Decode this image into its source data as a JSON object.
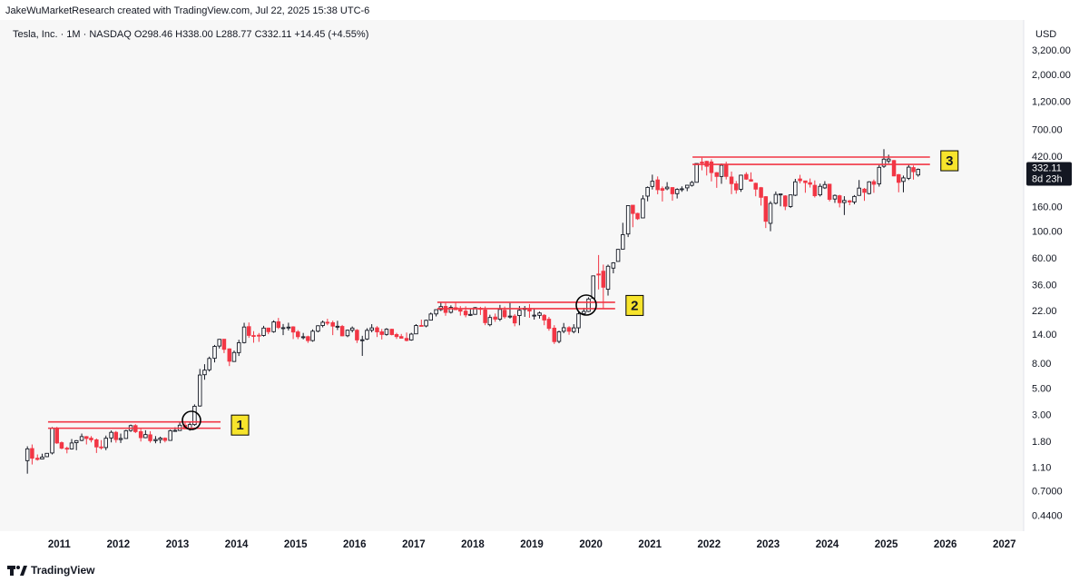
{
  "header": {
    "credit": "JakeWuMarketResearch created with TradingView.com, Jul 22, 2025 15:38 UTC-6"
  },
  "footer": {
    "brand": "TradingView"
  },
  "chart_data": {
    "type": "candlestick",
    "legend": "Tesla, Inc. · 1M · NASDAQ  O298.46 H338.00 L288.77 C332.11 +14.45 (+4.55%)",
    "currency": "USD",
    "log_scale": true,
    "grid": false,
    "up_color": "#131722",
    "down_color": "#f23645",
    "xlim": [
      2010.15,
      2027.28
    ],
    "xticks": [
      2011,
      2012,
      2013,
      2014,
      2015,
      2016,
      2017,
      2018,
      2019,
      2020,
      2021,
      2022,
      2023,
      2024,
      2025,
      2026,
      2027
    ],
    "ylim": [
      0.33,
      5200
    ],
    "yticks": [
      {
        "value": 3200,
        "label": "3,200.00"
      },
      {
        "value": 2000,
        "label": "2,000.00"
      },
      {
        "value": 1200,
        "label": "1,200.00"
      },
      {
        "value": 700,
        "label": "700.00"
      },
      {
        "value": 420,
        "label": "420.00"
      },
      {
        "value": 160,
        "label": "160.00"
      },
      {
        "value": 100,
        "label": "100.00"
      },
      {
        "value": 60,
        "label": "60.00"
      },
      {
        "value": 36,
        "label": "36.00"
      },
      {
        "value": 22,
        "label": "22.00"
      },
      {
        "value": 14,
        "label": "14.00"
      },
      {
        "value": 8,
        "label": "8.00"
      },
      {
        "value": 5,
        "label": "5.00"
      },
      {
        "value": 3,
        "label": "3.00"
      },
      {
        "value": 1.8,
        "label": "1.80"
      },
      {
        "value": 1.1,
        "label": "1.10"
      },
      {
        "value": 0.7,
        "label": "0.7000"
      },
      {
        "value": 0.44,
        "label": "0.4400"
      }
    ],
    "last_price": 332.11,
    "countdown": "8d 23h",
    "levels": [
      {
        "label": "1",
        "color": "#f23645",
        "prices": [
          2.66,
          2.36
        ],
        "x": [
          2010.81,
          2013.73
        ]
      },
      {
        "label": "2",
        "color": "#f23645",
        "prices": [
          26.2,
          23.2
        ],
        "x": [
          2017.4,
          2020.41
        ]
      },
      {
        "label": "3",
        "color": "#f23645",
        "prices": [
          420,
          365
        ],
        "x": [
          2021.72,
          2025.74
        ]
      }
    ],
    "x": [
      2010.46,
      2010.54,
      2010.63,
      2010.71,
      2010.79,
      2010.88,
      2010.96,
      2011.04,
      2011.13,
      2011.21,
      2011.29,
      2011.38,
      2011.46,
      2011.54,
      2011.63,
      2011.71,
      2011.79,
      2011.88,
      2011.96,
      2012.04,
      2012.13,
      2012.21,
      2012.29,
      2012.38,
      2012.46,
      2012.54,
      2012.63,
      2012.71,
      2012.79,
      2012.88,
      2012.96,
      2013.04,
      2013.13,
      2013.21,
      2013.29,
      2013.38,
      2013.46,
      2013.54,
      2013.63,
      2013.71,
      2013.79,
      2013.88,
      2013.96,
      2014.04,
      2014.13,
      2014.21,
      2014.29,
      2014.38,
      2014.46,
      2014.54,
      2014.63,
      2014.71,
      2014.79,
      2014.88,
      2014.96,
      2015.04,
      2015.13,
      2015.21,
      2015.29,
      2015.38,
      2015.46,
      2015.54,
      2015.63,
      2015.71,
      2015.79,
      2015.88,
      2015.96,
      2016.04,
      2016.13,
      2016.21,
      2016.29,
      2016.38,
      2016.46,
      2016.54,
      2016.63,
      2016.71,
      2016.79,
      2016.88,
      2016.96,
      2017.04,
      2017.13,
      2017.21,
      2017.29,
      2017.38,
      2017.46,
      2017.54,
      2017.63,
      2017.71,
      2017.79,
      2017.88,
      2017.96,
      2018.04,
      2018.13,
      2018.21,
      2018.29,
      2018.38,
      2018.46,
      2018.54,
      2018.63,
      2018.71,
      2018.79,
      2018.88,
      2018.96,
      2019.04,
      2019.13,
      2019.21,
      2019.29,
      2019.38,
      2019.46,
      2019.54,
      2019.63,
      2019.71,
      2019.79,
      2019.88,
      2019.96,
      2020.04,
      2020.13,
      2020.21,
      2020.29,
      2020.38,
      2020.46,
      2020.54,
      2020.63,
      2020.71,
      2020.79,
      2020.88,
      2020.96,
      2021.04,
      2021.13,
      2021.21,
      2021.29,
      2021.38,
      2021.46,
      2021.54,
      2021.63,
      2021.71,
      2021.79,
      2021.88,
      2021.96,
      2022.04,
      2022.13,
      2022.21,
      2022.29,
      2022.38,
      2022.46,
      2022.54,
      2022.63,
      2022.71,
      2022.79,
      2022.88,
      2022.96,
      2023.04,
      2023.13,
      2023.21,
      2023.29,
      2023.38,
      2023.46,
      2023.54,
      2023.63,
      2023.71,
      2023.79,
      2023.88,
      2023.96,
      2024.04,
      2024.13,
      2024.21,
      2024.29,
      2024.38,
      2024.46,
      2024.54,
      2024.63,
      2024.71,
      2024.79,
      2024.88,
      2024.96,
      2025.04,
      2025.13,
      2025.21,
      2025.29,
      2025.38,
      2025.46,
      2025.54
    ],
    "ohlc": [
      [
        1.27,
        1.67,
        0.99,
        1.59
      ],
      [
        1.6,
        1.73,
        1.18,
        1.33
      ],
      [
        1.33,
        1.43,
        1.27,
        1.3
      ],
      [
        1.31,
        1.45,
        1.3,
        1.36
      ],
      [
        1.37,
        1.46,
        1.36,
        1.46
      ],
      [
        1.47,
        2.41,
        1.43,
        2.36
      ],
      [
        2.36,
        2.42,
        1.75,
        1.78
      ],
      [
        1.79,
        1.83,
        1.58,
        1.61
      ],
      [
        1.61,
        1.66,
        1.46,
        1.59
      ],
      [
        1.59,
        1.92,
        1.57,
        1.78
      ],
      [
        1.79,
        1.88,
        1.55,
        1.86
      ],
      [
        1.87,
        2.13,
        1.84,
        2.01
      ],
      [
        2.01,
        2.03,
        1.73,
        1.94
      ],
      [
        1.95,
        2.03,
        1.8,
        1.89
      ],
      [
        1.89,
        1.94,
        1.47,
        1.65
      ],
      [
        1.65,
        1.88,
        1.57,
        1.63
      ],
      [
        1.63,
        2.05,
        1.55,
        1.95
      ],
      [
        1.96,
        2.26,
        1.8,
        2.18
      ],
      [
        2.18,
        2.24,
        1.79,
        1.9
      ],
      [
        1.9,
        2.13,
        1.78,
        1.94
      ],
      [
        1.94,
        2.29,
        1.93,
        2.25
      ],
      [
        2.26,
        2.53,
        2.2,
        2.48
      ],
      [
        2.48,
        2.55,
        2.15,
        2.21
      ],
      [
        2.21,
        2.33,
        1.83,
        1.97
      ],
      [
        1.97,
        2.27,
        1.95,
        2.09
      ],
      [
        2.08,
        2.23,
        1.79,
        1.86
      ],
      [
        1.86,
        2.03,
        1.77,
        1.9
      ],
      [
        1.9,
        2.01,
        1.77,
        1.95
      ],
      [
        1.95,
        1.98,
        1.8,
        1.87
      ],
      [
        1.87,
        2.3,
        1.87,
        2.25
      ],
      [
        2.25,
        2.4,
        2.21,
        2.26
      ],
      [
        2.26,
        2.66,
        2.24,
        2.5
      ],
      [
        2.5,
        2.63,
        2.33,
        2.33
      ],
      [
        2.34,
        2.67,
        2.25,
        2.53
      ],
      [
        2.53,
        3.72,
        2.47,
        3.59
      ],
      [
        3.61,
        7.33,
        3.56,
        6.52
      ],
      [
        6.56,
        8.02,
        5.96,
        7.16
      ],
      [
        7.21,
        9.27,
        6.97,
        8.95
      ],
      [
        8.98,
        11.59,
        8.3,
        11.27
      ],
      [
        11.35,
        12.99,
        10.83,
        12.89
      ],
      [
        12.92,
        12.97,
        9.91,
        10.66
      ],
      [
        10.75,
        10.86,
        7.74,
        8.49
      ],
      [
        8.45,
        10.41,
        8.38,
        10.03
      ],
      [
        10.01,
        12.79,
        9.38,
        12.09
      ],
      [
        12.12,
        17.7,
        11.93,
        16.32
      ],
      [
        16.44,
        17.8,
        13.27,
        13.9
      ],
      [
        13.87,
        15.09,
        12.09,
        13.86
      ],
      [
        13.96,
        14.55,
        12.29,
        13.85
      ],
      [
        13.89,
        16.7,
        13.6,
        16.0
      ],
      [
        16.0,
        16.13,
        14.23,
        14.93
      ],
      [
        14.93,
        18.55,
        14.63,
        17.98
      ],
      [
        18.05,
        19.43,
        15.7,
        16.18
      ],
      [
        16.11,
        17.3,
        13.98,
        16.11
      ],
      [
        16.2,
        17.72,
        15.26,
        16.3
      ],
      [
        16.37,
        16.57,
        12.97,
        14.83
      ],
      [
        14.86,
        15.38,
        12.95,
        13.57
      ],
      [
        13.55,
        14.58,
        12.89,
        13.55
      ],
      [
        13.57,
        13.83,
        12.05,
        12.59
      ],
      [
        12.59,
        15.6,
        12.33,
        15.07
      ],
      [
        15.07,
        16.85,
        14.75,
        16.72
      ],
      [
        16.8,
        18.49,
        16.22,
        17.88
      ],
      [
        17.88,
        19.11,
        16.89,
        17.75
      ],
      [
        17.73,
        18.43,
        13.98,
        16.6
      ],
      [
        16.39,
        18.38,
        15.4,
        16.56
      ],
      [
        16.5,
        16.98,
        13.66,
        13.79
      ],
      [
        13.82,
        15.53,
        13.45,
        15.35
      ],
      [
        15.35,
        16.5,
        14.73,
        16.0
      ],
      [
        15.34,
        15.68,
        12.03,
        12.75
      ],
      [
        12.71,
        13.8,
        9.4,
        12.79
      ],
      [
        12.98,
        15.97,
        12.73,
        15.32
      ],
      [
        15.35,
        17.24,
        14.75,
        16.05
      ],
      [
        16.07,
        16.59,
        13.48,
        14.88
      ],
      [
        14.89,
        15.72,
        12.87,
        14.15
      ],
      [
        14.17,
        15.98,
        13.83,
        15.65
      ],
      [
        15.63,
        15.8,
        13.91,
        14.13
      ],
      [
        14.13,
        14.6,
        13.0,
        13.6
      ],
      [
        13.6,
        14.3,
        13.16,
        13.18
      ],
      [
        13.13,
        14.69,
        12.4,
        12.63
      ],
      [
        12.75,
        14.61,
        12.57,
        14.25
      ],
      [
        14.32,
        17.24,
        14.27,
        16.79
      ],
      [
        16.82,
        18.79,
        16.6,
        16.67
      ],
      [
        16.66,
        18.8,
        16.24,
        18.55
      ],
      [
        18.61,
        21.53,
        18.5,
        20.93
      ],
      [
        20.96,
        22.86,
        19.98,
        22.73
      ],
      [
        22.79,
        25.97,
        22.13,
        24.11
      ],
      [
        24.19,
        25.85,
        20.24,
        21.57
      ],
      [
        21.62,
        24.71,
        21.12,
        23.73
      ],
      [
        23.6,
        25.99,
        22.61,
        22.74
      ],
      [
        22.69,
        24.33,
        20.3,
        22.1
      ],
      [
        22.12,
        24.23,
        19.66,
        20.59
      ],
      [
        20.64,
        22.93,
        20.2,
        20.76
      ],
      [
        20.8,
        23.93,
        20.65,
        23.62
      ],
      [
        23.3,
        24.01,
        20.56,
        22.87
      ],
      [
        22.6,
        24.17,
        16.91,
        17.74
      ],
      [
        17.05,
        20.65,
        16.55,
        19.59
      ],
      [
        19.75,
        21.11,
        18.03,
        18.98
      ],
      [
        18.96,
        24.92,
        18.3,
        22.86
      ],
      [
        22.48,
        24.13,
        19.17,
        19.87
      ],
      [
        19.88,
        25.83,
        19.2,
        20.11
      ],
      [
        20.1,
        20.9,
        16.55,
        17.65
      ],
      [
        20.33,
        24.38,
        16.87,
        22.49
      ],
      [
        22.85,
        24.38,
        19.83,
        23.37
      ],
      [
        23.31,
        25.29,
        19.47,
        22.19
      ],
      [
        20.41,
        23.17,
        18.8,
        20.47
      ],
      [
        20.4,
        21.93,
        19.18,
        21.33
      ],
      [
        20.42,
        20.89,
        16.9,
        18.66
      ],
      [
        18.95,
        19.79,
        15.21,
        15.91
      ],
      [
        15.97,
        16.9,
        11.81,
        12.35
      ],
      [
        12.4,
        15.23,
        11.97,
        14.9
      ],
      [
        15.06,
        17.63,
        14.5,
        16.11
      ],
      [
        16.13,
        16.59,
        14.08,
        15.04
      ],
      [
        14.96,
        17.23,
        14.46,
        16.06
      ],
      [
        16.08,
        22.0,
        14.53,
        20.99
      ],
      [
        21.06,
        23.58,
        20.92,
        21.99
      ],
      [
        21.99,
        28.79,
        21.73,
        27.89
      ],
      [
        28.3,
        43.53,
        28.11,
        43.37
      ],
      [
        44.91,
        64.6,
        33.47,
        44.53
      ],
      [
        47.42,
        53.8,
        23.37,
        34.93
      ],
      [
        33.6,
        53.8,
        29.76,
        52.13
      ],
      [
        50.33,
        56.33,
        45.54,
        55.67
      ],
      [
        57.2,
        72.51,
        57.2,
        71.99
      ],
      [
        72.33,
        119.67,
        71.98,
        95.38
      ],
      [
        96.61,
        166.71,
        91.09,
        166.11
      ],
      [
        167.38,
        167.5,
        109.96,
        143.0
      ],
      [
        143.1,
        144.93,
        126.37,
        129.35
      ],
      [
        131.33,
        202.6,
        131.33,
        189.2
      ],
      [
        199.2,
        239.57,
        180.4,
        235.22
      ],
      [
        239.82,
        300.13,
        226.0,
        264.51
      ],
      [
        271.43,
        290.15,
        206.33,
        225.17
      ],
      [
        230.04,
        239.67,
        179.83,
        222.64
      ],
      [
        229.46,
        260.26,
        223.02,
        236.48
      ],
      [
        234.6,
        235.6,
        182.33,
        208.41
      ],
      [
        208.8,
        231.63,
        190.41,
        226.57
      ],
      [
        227.97,
        240.06,
        216.33,
        229.07
      ],
      [
        233.33,
        246.8,
        218.98,
        245.24
      ],
      [
        244.69,
        266.33,
        239.1,
        258.49
      ],
      [
        259.47,
        371.74,
        259.33,
        371.33
      ],
      [
        381.67,
        414.5,
        326.2,
        381.59
      ],
      [
        386.9,
        390.95,
        295.37,
        352.26
      ],
      [
        382.58,
        402.67,
        264.0,
        312.24
      ],
      [
        311.74,
        315.67,
        233.33,
        290.14
      ],
      [
        289.89,
        371.59,
        252.01,
        359.2
      ],
      [
        360.38,
        384.29,
        273.9,
        290.25
      ],
      [
        286.92,
        318.5,
        206.86,
        252.75
      ],
      [
        251.72,
        265.94,
        208.69,
        224.47
      ],
      [
        227.0,
        298.32,
        216.17,
        297.15
      ],
      [
        301.28,
        314.67,
        271.81,
        275.61
      ],
      [
        272.58,
        313.8,
        262.47,
        265.25
      ],
      [
        254.5,
        257.5,
        198.59,
        227.54
      ],
      [
        234.05,
        237.4,
        166.19,
        194.7
      ],
      [
        197.08,
        198.92,
        108.24,
        123.18
      ],
      [
        118.47,
        180.68,
        101.81,
        173.22
      ],
      [
        173.89,
        217.65,
        169.93,
        205.71
      ],
      [
        206.21,
        207.79,
        163.91,
        207.46
      ],
      [
        199.91,
        202.69,
        152.37,
        164.31
      ],
      [
        163.17,
        204.48,
        158.83,
        203.93
      ],
      [
        202.59,
        276.99,
        199.37,
        261.77
      ],
      [
        276.49,
        299.29,
        254.12,
        267.43
      ],
      [
        266.26,
        266.47,
        212.36,
        258.08
      ],
      [
        257.26,
        278.98,
        234.58,
        250.22
      ],
      [
        244.81,
        268.94,
        194.07,
        200.84
      ],
      [
        204.04,
        252.75,
        197.85,
        240.08
      ],
      [
        233.14,
        265.13,
        228.2,
        248.48
      ],
      [
        250.08,
        251.25,
        180.06,
        187.29
      ],
      [
        188.5,
        205.6,
        175.01,
        201.88
      ],
      [
        200.52,
        204.52,
        160.51,
        175.79
      ],
      [
        176.17,
        198.87,
        138.8,
        183.28
      ],
      [
        182.0,
        184.77,
        167.41,
        178.08
      ],
      [
        178.13,
        203.2,
        170.56,
        197.88
      ],
      [
        201.83,
        271.0,
        200.72,
        232.07
      ],
      [
        227.69,
        232.67,
        182.0,
        214.11
      ],
      [
        209.16,
        264.86,
        205.67,
        261.63
      ],
      [
        262.67,
        273.54,
        212.11,
        249.85
      ],
      [
        252.04,
        361.93,
        238.88,
        345.16
      ],
      [
        352.38,
        488.54,
        341.29,
        403.84
      ],
      [
        390.1,
        439.74,
        373.04,
        404.6
      ],
      [
        393.05,
        397.77,
        290.9,
        292.98
      ],
      [
        300.34,
        303.94,
        214.25,
        259.16
      ],
      [
        263.8,
        294.86,
        214.25,
        282.16
      ],
      [
        280.01,
        367.71,
        270.78,
        346.46
      ],
      [
        343.5,
        357.54,
        273.21,
        317.66
      ],
      [
        298.46,
        338.0,
        288.77,
        332.11
      ]
    ]
  }
}
